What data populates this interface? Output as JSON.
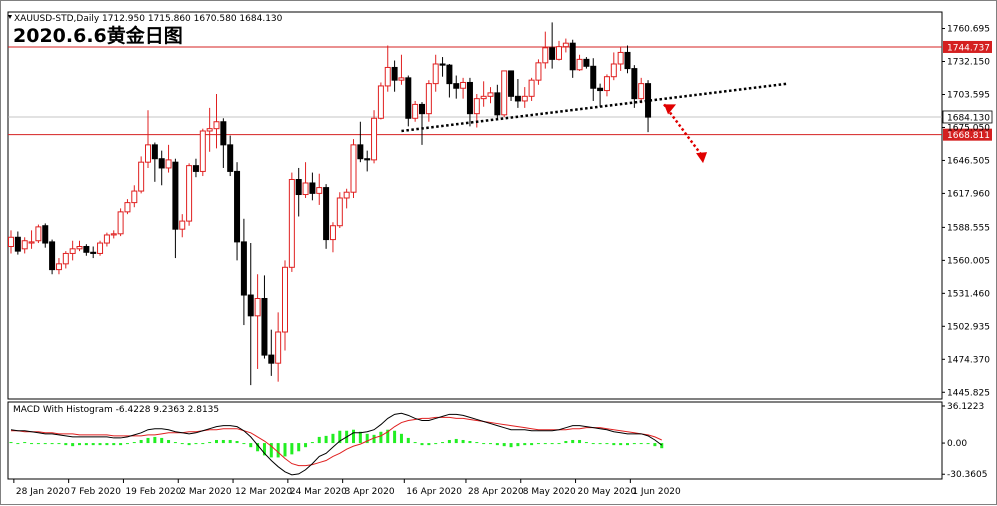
{
  "header": {
    "symbol_line": "XAUUSD-STD,Daily  1712.950 1715.860 1670.580 1684.130",
    "big_title": "2020.6.6黄金日图"
  },
  "macd_header": "MACD With Histogram -6.4228 9.2363 2.8135",
  "colors": {
    "up_candle": "#e02020",
    "down_candle": "#000000",
    "hline": "#d42020",
    "trendline": "#000000",
    "arrow": "#e00000",
    "macd_line": "#000000",
    "signal_line": "#e02020",
    "histogram": "#22ee22",
    "tag_red_bg": "#d42020",
    "tag_white_bg": "#ffffff"
  },
  "chart_data": [
    {
      "type": "candlestick",
      "title": "XAUUSD-STD,Daily",
      "ylim": [
        1440,
        1775
      ],
      "y_ticks": [
        "1760.695",
        "1732.150",
        "1703.595",
        "1675.050",
        "1646.505",
        "1617.960",
        "1588.555",
        "1560.005",
        "1531.460",
        "1502.935",
        "1474.370",
        "1445.825"
      ],
      "x_tick_labels": [
        "28 Jan 2020",
        "7 Feb 2020",
        "19 Feb 2020",
        "2 Mar 2020",
        "12 Mar 2020",
        "24 Mar 2020",
        "3 Apr 2020",
        "16 Apr 2020",
        "28 Apr 2020",
        "8 May 2020",
        "20 May 2020",
        "1 Jun 2020"
      ],
      "horizontal_lines": [
        {
          "value": 1744.737,
          "label": "1744.737"
        },
        {
          "value": 1668.811,
          "label": "1668.811"
        }
      ],
      "current_price": {
        "value": 1684.13,
        "label": "1684.130"
      },
      "trendline": {
        "from": [
          "2020-04-16",
          1672.0
        ],
        "to": [
          "2020-06-10",
          1713.0
        ]
      },
      "arrow": {
        "from": [
          "2020-06-05",
          1695.0
        ],
        "to": [
          "2020-06-10",
          1645.0
        ]
      },
      "candles": [
        {
          "d": "2020-01-27",
          "o": 1572,
          "h": 1586,
          "l": 1566,
          "c": 1580
        },
        {
          "d": "2020-01-28",
          "o": 1580,
          "h": 1585,
          "l": 1565,
          "c": 1568
        },
        {
          "d": "2020-01-29",
          "o": 1570,
          "h": 1580,
          "l": 1566,
          "c": 1577
        },
        {
          "d": "2020-01-30",
          "o": 1575,
          "h": 1586,
          "l": 1570,
          "c": 1576
        },
        {
          "d": "2020-01-31",
          "o": 1577,
          "h": 1591,
          "l": 1575,
          "c": 1589
        },
        {
          "d": "2020-02-03",
          "o": 1590,
          "h": 1592,
          "l": 1571,
          "c": 1575
        },
        {
          "d": "2020-02-04",
          "o": 1576,
          "h": 1578,
          "l": 1548,
          "c": 1552
        },
        {
          "d": "2020-02-05",
          "o": 1552,
          "h": 1562,
          "l": 1548,
          "c": 1557
        },
        {
          "d": "2020-02-06",
          "o": 1557,
          "h": 1568,
          "l": 1553,
          "c": 1566
        },
        {
          "d": "2020-02-07",
          "o": 1566,
          "h": 1577,
          "l": 1560,
          "c": 1570
        },
        {
          "d": "2020-02-10",
          "o": 1570,
          "h": 1577,
          "l": 1568,
          "c": 1572
        },
        {
          "d": "2020-02-11",
          "o": 1572,
          "h": 1574,
          "l": 1564,
          "c": 1567
        },
        {
          "d": "2020-02-12",
          "o": 1567,
          "h": 1572,
          "l": 1562,
          "c": 1566
        },
        {
          "d": "2020-02-13",
          "o": 1566,
          "h": 1577,
          "l": 1564,
          "c": 1575
        },
        {
          "d": "2020-02-14",
          "o": 1575,
          "h": 1584,
          "l": 1572,
          "c": 1582
        },
        {
          "d": "2020-02-17",
          "o": 1582,
          "h": 1586,
          "l": 1579,
          "c": 1583
        },
        {
          "d": "2020-02-18",
          "o": 1583,
          "h": 1605,
          "l": 1581,
          "c": 1602
        },
        {
          "d": "2020-02-19",
          "o": 1602,
          "h": 1613,
          "l": 1600,
          "c": 1610
        },
        {
          "d": "2020-02-20",
          "o": 1610,
          "h": 1625,
          "l": 1606,
          "c": 1620
        },
        {
          "d": "2020-02-21",
          "o": 1620,
          "h": 1650,
          "l": 1618,
          "c": 1645
        },
        {
          "d": "2020-02-24",
          "o": 1645,
          "h": 1690,
          "l": 1640,
          "c": 1660
        },
        {
          "d": "2020-02-25",
          "o": 1660,
          "h": 1662,
          "l": 1628,
          "c": 1648
        },
        {
          "d": "2020-02-26",
          "o": 1648,
          "h": 1655,
          "l": 1625,
          "c": 1640
        },
        {
          "d": "2020-02-27",
          "o": 1640,
          "h": 1660,
          "l": 1636,
          "c": 1647
        },
        {
          "d": "2020-02-28",
          "o": 1645,
          "h": 1648,
          "l": 1562,
          "c": 1587
        },
        {
          "d": "2020-03-02",
          "o": 1587,
          "h": 1600,
          "l": 1580,
          "c": 1594
        },
        {
          "d": "2020-03-03",
          "o": 1594,
          "h": 1644,
          "l": 1590,
          "c": 1642
        },
        {
          "d": "2020-03-04",
          "o": 1642,
          "h": 1648,
          "l": 1632,
          "c": 1637
        },
        {
          "d": "2020-03-05",
          "o": 1637,
          "h": 1674,
          "l": 1633,
          "c": 1672
        },
        {
          "d": "2020-03-06",
          "o": 1672,
          "h": 1692,
          "l": 1654,
          "c": 1674
        },
        {
          "d": "2020-03-09",
          "o": 1674,
          "h": 1704,
          "l": 1657,
          "c": 1680
        },
        {
          "d": "2020-03-10",
          "o": 1680,
          "h": 1683,
          "l": 1640,
          "c": 1660
        },
        {
          "d": "2020-03-11",
          "o": 1660,
          "h": 1668,
          "l": 1633,
          "c": 1637
        },
        {
          "d": "2020-03-12",
          "o": 1637,
          "h": 1645,
          "l": 1560,
          "c": 1576
        },
        {
          "d": "2020-03-13",
          "o": 1576,
          "h": 1596,
          "l": 1504,
          "c": 1530
        },
        {
          "d": "2020-03-16",
          "o": 1530,
          "h": 1575,
          "l": 1452,
          "c": 1512
        },
        {
          "d": "2020-03-17",
          "o": 1512,
          "h": 1548,
          "l": 1466,
          "c": 1527
        },
        {
          "d": "2020-03-18",
          "o": 1527,
          "h": 1547,
          "l": 1475,
          "c": 1478
        },
        {
          "d": "2020-03-19",
          "o": 1478,
          "h": 1500,
          "l": 1460,
          "c": 1471
        },
        {
          "d": "2020-03-20",
          "o": 1471,
          "h": 1515,
          "l": 1455,
          "c": 1498
        },
        {
          "d": "2020-03-23",
          "o": 1498,
          "h": 1560,
          "l": 1482,
          "c": 1554
        },
        {
          "d": "2020-03-24",
          "o": 1554,
          "h": 1636,
          "l": 1550,
          "c": 1630
        },
        {
          "d": "2020-03-25",
          "o": 1630,
          "h": 1640,
          "l": 1598,
          "c": 1617
        },
        {
          "d": "2020-03-26",
          "o": 1617,
          "h": 1645,
          "l": 1614,
          "c": 1627
        },
        {
          "d": "2020-03-27",
          "o": 1627,
          "h": 1636,
          "l": 1612,
          "c": 1618
        },
        {
          "d": "2020-03-30",
          "o": 1618,
          "h": 1635,
          "l": 1608,
          "c": 1623
        },
        {
          "d": "2020-03-31",
          "o": 1623,
          "h": 1626,
          "l": 1570,
          "c": 1578
        },
        {
          "d": "2020-04-01",
          "o": 1578,
          "h": 1593,
          "l": 1567,
          "c": 1590
        },
        {
          "d": "2020-04-02",
          "o": 1590,
          "h": 1619,
          "l": 1588,
          "c": 1614
        },
        {
          "d": "2020-04-03",
          "o": 1614,
          "h": 1622,
          "l": 1605,
          "c": 1619
        },
        {
          "d": "2020-04-06",
          "o": 1619,
          "h": 1665,
          "l": 1614,
          "c": 1660
        },
        {
          "d": "2020-04-07",
          "o": 1660,
          "h": 1680,
          "l": 1645,
          "c": 1648
        },
        {
          "d": "2020-04-08",
          "o": 1648,
          "h": 1655,
          "l": 1637,
          "c": 1647
        },
        {
          "d": "2020-04-09",
          "o": 1647,
          "h": 1690,
          "l": 1644,
          "c": 1683
        },
        {
          "d": "2020-04-13",
          "o": 1683,
          "h": 1714,
          "l": 1682,
          "c": 1711
        },
        {
          "d": "2020-04-14",
          "o": 1711,
          "h": 1746,
          "l": 1706,
          "c": 1727
        },
        {
          "d": "2020-04-15",
          "o": 1727,
          "h": 1733,
          "l": 1706,
          "c": 1716
        },
        {
          "d": "2020-04-16",
          "o": 1716,
          "h": 1738,
          "l": 1712,
          "c": 1718
        },
        {
          "d": "2020-04-17",
          "o": 1718,
          "h": 1720,
          "l": 1676,
          "c": 1683
        },
        {
          "d": "2020-04-20",
          "o": 1683,
          "h": 1698,
          "l": 1680,
          "c": 1695
        },
        {
          "d": "2020-04-21",
          "o": 1695,
          "h": 1697,
          "l": 1660,
          "c": 1687
        },
        {
          "d": "2020-04-22",
          "o": 1687,
          "h": 1716,
          "l": 1680,
          "c": 1713
        },
        {
          "d": "2020-04-23",
          "o": 1713,
          "h": 1738,
          "l": 1706,
          "c": 1730
        },
        {
          "d": "2020-04-24",
          "o": 1730,
          "h": 1736,
          "l": 1719,
          "c": 1729
        },
        {
          "d": "2020-04-27",
          "o": 1729,
          "h": 1730,
          "l": 1701,
          "c": 1713
        },
        {
          "d": "2020-04-28",
          "o": 1713,
          "h": 1720,
          "l": 1700,
          "c": 1709
        },
        {
          "d": "2020-04-29",
          "o": 1709,
          "h": 1718,
          "l": 1700,
          "c": 1714
        },
        {
          "d": "2020-04-30",
          "o": 1714,
          "h": 1718,
          "l": 1676,
          "c": 1687
        },
        {
          "d": "2020-05-01",
          "o": 1687,
          "h": 1704,
          "l": 1675,
          "c": 1700
        },
        {
          "d": "2020-05-04",
          "o": 1700,
          "h": 1715,
          "l": 1693,
          "c": 1702
        },
        {
          "d": "2020-05-05",
          "o": 1702,
          "h": 1710,
          "l": 1696,
          "c": 1705
        },
        {
          "d": "2020-05-06",
          "o": 1705,
          "h": 1712,
          "l": 1682,
          "c": 1686
        },
        {
          "d": "2020-05-07",
          "o": 1686,
          "h": 1724,
          "l": 1684,
          "c": 1724
        },
        {
          "d": "2020-05-08",
          "o": 1724,
          "h": 1722,
          "l": 1698,
          "c": 1702
        },
        {
          "d": "2020-05-11",
          "o": 1702,
          "h": 1717,
          "l": 1692,
          "c": 1698
        },
        {
          "d": "2020-05-12",
          "o": 1698,
          "h": 1710,
          "l": 1692,
          "c": 1702
        },
        {
          "d": "2020-05-13",
          "o": 1702,
          "h": 1718,
          "l": 1698,
          "c": 1716
        },
        {
          "d": "2020-05-14",
          "o": 1716,
          "h": 1734,
          "l": 1712,
          "c": 1731
        },
        {
          "d": "2020-05-15",
          "o": 1731,
          "h": 1758,
          "l": 1726,
          "c": 1744
        },
        {
          "d": "2020-05-18",
          "o": 1744,
          "h": 1766,
          "l": 1726,
          "c": 1734
        },
        {
          "d": "2020-05-19",
          "o": 1734,
          "h": 1750,
          "l": 1733,
          "c": 1745
        },
        {
          "d": "2020-05-20",
          "o": 1745,
          "h": 1752,
          "l": 1740,
          "c": 1748
        },
        {
          "d": "2020-05-21",
          "o": 1748,
          "h": 1751,
          "l": 1718,
          "c": 1725
        },
        {
          "d": "2020-05-22",
          "o": 1725,
          "h": 1738,
          "l": 1724,
          "c": 1734
        },
        {
          "d": "2020-05-25",
          "o": 1734,
          "h": 1736,
          "l": 1726,
          "c": 1728
        },
        {
          "d": "2020-05-26",
          "o": 1728,
          "h": 1735,
          "l": 1698,
          "c": 1709
        },
        {
          "d": "2020-05-27",
          "o": 1709,
          "h": 1713,
          "l": 1693,
          "c": 1707
        },
        {
          "d": "2020-05-28",
          "o": 1707,
          "h": 1721,
          "l": 1702,
          "c": 1719
        },
        {
          "d": "2020-05-29",
          "o": 1719,
          "h": 1740,
          "l": 1716,
          "c": 1730
        },
        {
          "d": "2020-06-01",
          "o": 1730,
          "h": 1745,
          "l": 1724,
          "c": 1740
        },
        {
          "d": "2020-06-02",
          "o": 1740,
          "h": 1746,
          "l": 1722,
          "c": 1726
        },
        {
          "d": "2020-06-03",
          "o": 1726,
          "h": 1729,
          "l": 1692,
          "c": 1700
        },
        {
          "d": "2020-06-04",
          "o": 1700,
          "h": 1718,
          "l": 1696,
          "c": 1713
        },
        {
          "d": "2020-06-05",
          "o": 1713,
          "h": 1716,
          "l": 1671,
          "c": 1684
        }
      ]
    },
    {
      "type": "macd",
      "title": "MACD With Histogram -6.4228 9.2363 2.8135",
      "ylim": [
        -35,
        40
      ],
      "y_ticks": [
        "36.1223",
        "0.00",
        "-30.3605"
      ],
      "macd": [
        13,
        12,
        12,
        11,
        10,
        9,
        9,
        8,
        7,
        6,
        6,
        6,
        6,
        6,
        6,
        5,
        5,
        6,
        8,
        10,
        13,
        14,
        14,
        13,
        11,
        10,
        9,
        10,
        12,
        14,
        16,
        17,
        17,
        16,
        12,
        6,
        -2,
        -10,
        -17,
        -23,
        -28,
        -31,
        -30,
        -26,
        -20,
        -13,
        -10,
        -4,
        2,
        6,
        10,
        10,
        11,
        13,
        18,
        24,
        28,
        29,
        27,
        24,
        22,
        22,
        24,
        26,
        28,
        28,
        27,
        25,
        23,
        21,
        19,
        17,
        15,
        13,
        13,
        13,
        12,
        12,
        12,
        12,
        13,
        15,
        17,
        17,
        16,
        15,
        14,
        13,
        11,
        10,
        9,
        9,
        9,
        7,
        3,
        -2
      ],
      "signal": [
        12,
        12,
        11,
        11,
        11,
        10,
        10,
        9,
        9,
        9,
        8,
        8,
        8,
        8,
        8,
        7,
        7,
        7,
        7,
        7,
        8,
        8,
        9,
        10,
        10,
        10,
        11,
        11,
        12,
        13,
        13,
        14,
        14,
        14,
        12,
        10,
        6,
        2,
        -3,
        -9,
        -15,
        -20,
        -22,
        -22,
        -21,
        -19,
        -17,
        -13,
        -10,
        -6,
        -3,
        -1,
        2,
        5,
        7,
        11,
        16,
        20,
        22,
        23,
        24,
        24,
        25,
        25,
        25,
        24,
        24,
        23,
        22,
        21,
        20,
        19,
        18,
        17,
        16,
        15,
        14,
        13,
        13,
        13,
        13,
        13,
        14,
        14,
        15,
        15,
        15,
        14,
        13,
        12,
        11,
        10,
        9,
        8,
        6,
        3
      ],
      "histogram": [
        1,
        0,
        1,
        0,
        -1,
        -1,
        -1,
        -1,
        -2,
        -3,
        -2,
        -2,
        -2,
        -2,
        -2,
        -2,
        -2,
        -1,
        1,
        3,
        5,
        6,
        5,
        3,
        1,
        0,
        -2,
        -1,
        0,
        1,
        3,
        3,
        3,
        2,
        0,
        -4,
        -8,
        -12,
        -14,
        -14,
        -13,
        -11,
        -8,
        -4,
        1,
        6,
        7,
        9,
        12,
        12,
        13,
        11,
        9,
        8,
        11,
        13,
        12,
        9,
        5,
        1,
        -2,
        -2,
        -1,
        1,
        3,
        4,
        3,
        2,
        1,
        0,
        -1,
        -2,
        -3,
        -4,
        -3,
        -2,
        -2,
        -1,
        -1,
        -1,
        0,
        2,
        3,
        3,
        1,
        0,
        -1,
        -1,
        -2,
        -2,
        -2,
        -1,
        0,
        -1,
        -3,
        -5
      ]
    }
  ]
}
